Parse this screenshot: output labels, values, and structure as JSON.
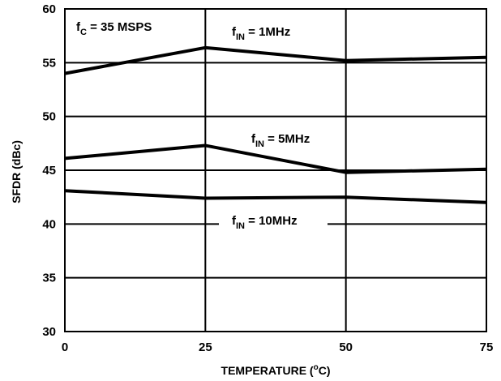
{
  "chart_data": {
    "type": "line",
    "x": [
      0,
      25,
      50,
      75
    ],
    "xlim": [
      0,
      75
    ],
    "ylim": [
      30,
      60
    ],
    "xticks": [
      "0",
      "25",
      "50",
      "75"
    ],
    "yticks": [
      "30",
      "35",
      "40",
      "45",
      "50",
      "55",
      "60"
    ],
    "grid": true,
    "xlabel": {
      "main": "TEMPERATURE (",
      "sup": "o",
      "unit": "C)"
    },
    "ylabel": "SFDR (dBc)",
    "condition": {
      "base": "f",
      "sub": "C",
      "rest": " = 35 MSPS"
    },
    "series": [
      {
        "label_base": "f",
        "label_sub": "IN",
        "label_rest": " = 1MHz",
        "values": [
          54.0,
          56.4,
          55.2,
          55.5
        ]
      },
      {
        "label_base": "f",
        "label_sub": "IN",
        "label_rest": " = 5MHz",
        "values": [
          46.1,
          47.3,
          44.8,
          45.1
        ]
      },
      {
        "label_base": "f",
        "label_sub": "IN",
        "label_rest": " = 10MHz",
        "values": [
          43.1,
          42.4,
          42.5,
          42.0
        ]
      }
    ]
  }
}
